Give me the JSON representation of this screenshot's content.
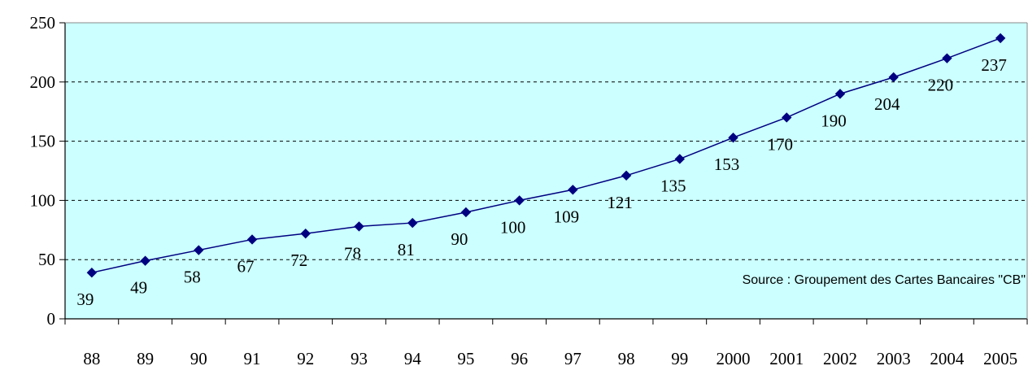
{
  "chart_data": {
    "type": "line",
    "categories": [
      "88",
      "89",
      "90",
      "91",
      "92",
      "93",
      "94",
      "95",
      "96",
      "97",
      "98",
      "99",
      "2000",
      "2001",
      "2002",
      "2003",
      "2004",
      "2005"
    ],
    "series": [
      {
        "values": [
          39,
          49,
          58,
          67,
          72,
          78,
          81,
          90,
          100,
          109,
          121,
          135,
          153,
          170,
          190,
          204,
          220,
          237
        ],
        "color": "#000080",
        "marker": "diamond"
      }
    ],
    "data_labels": [
      "39",
      "49",
      "58",
      "67",
      "72",
      "78",
      "81",
      "90",
      "100",
      "109",
      "121",
      "135",
      "153",
      "170",
      "190",
      "204",
      "220",
      "237"
    ],
    "y_ticks": [
      "0",
      "50",
      "100",
      "150",
      "200",
      "250"
    ],
    "ylim": [
      0,
      250
    ],
    "grid": "horizontal dashed",
    "plot_background": "#CCFFFF",
    "annotation": "Source : Groupement des Cartes Bancaires \"CB\""
  }
}
